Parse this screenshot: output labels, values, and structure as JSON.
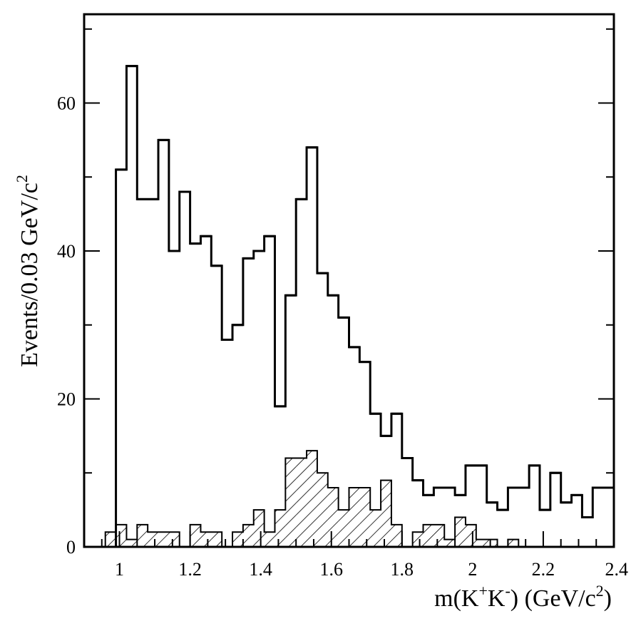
{
  "chart_data": {
    "type": "histogram",
    "xlabel": "m(K+K-) (GeV/c2)",
    "xlabel_parts": {
      "m": "m(K",
      "plus": "+",
      "k": "K",
      "minus": "-",
      "close": ") (GeV/c",
      "sq": "2",
      "end": ")"
    },
    "ylabel": "Events/0.03 GeV/c2",
    "ylabel_parts": {
      "base": "Events/0.03 GeV/c",
      "sq": "2"
    },
    "xlim": [
      0.9,
      2.4
    ],
    "ylim": [
      0,
      72
    ],
    "bin_width": 0.03,
    "x_ticks": [
      "1",
      "1.2",
      "1.4",
      "1.6",
      "1.8",
      "2",
      "2.2",
      "2.4"
    ],
    "x_tick_values": [
      1.0,
      1.2,
      1.4,
      1.6,
      1.8,
      2.0,
      2.2,
      2.4
    ],
    "y_ticks": [
      "0",
      "20",
      "40",
      "60"
    ],
    "y_tick_values": [
      0,
      20,
      40,
      60
    ],
    "series": [
      {
        "style": "outline",
        "bin_start": 0.99,
        "values": [
          51,
          65,
          47,
          47,
          55,
          40,
          48,
          41,
          42,
          38,
          28,
          30,
          39,
          40,
          42,
          19,
          34,
          47,
          54,
          37,
          34,
          31,
          27,
          25,
          18,
          15,
          18,
          12,
          9,
          7,
          8,
          8,
          7,
          11,
          11,
          6,
          5,
          8,
          8,
          11,
          5,
          10,
          6,
          7,
          4,
          8,
          8
        ]
      },
      {
        "style": "hatched",
        "bin_start": 0.96,
        "values": [
          2,
          3,
          1,
          3,
          2,
          2,
          2,
          0,
          3,
          2,
          2,
          0,
          2,
          3,
          5,
          2,
          5,
          12,
          12,
          13,
          10,
          8,
          5,
          8,
          8,
          5,
          9,
          3,
          0,
          2,
          3,
          3,
          1,
          4,
          3,
          1,
          1,
          0,
          1
        ]
      }
    ]
  }
}
